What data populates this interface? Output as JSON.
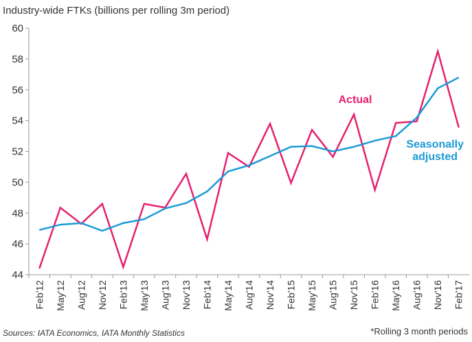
{
  "chart_data": {
    "type": "line",
    "title": "Industry-wide FTKs (billions per rolling 3m period)",
    "categories": [
      "Feb'12",
      "May'12",
      "Aug'12",
      "Nov'12",
      "Feb'13",
      "May'13",
      "Aug'13",
      "Nov'13",
      "Feb'14",
      "May'14",
      "Aug'14",
      "Nov'14",
      "Feb'15",
      "May'15",
      "Aug'15",
      "Nov'15",
      "Feb'16",
      "May'16",
      "Aug'16",
      "Nov'16",
      "Feb'17"
    ],
    "series": [
      {
        "name": "Actual",
        "color": "#e5206f",
        "values": [
          44.4,
          48.35,
          47.3,
          48.6,
          44.5,
          48.6,
          48.35,
          50.55,
          46.3,
          51.9,
          51.0,
          53.8,
          49.95,
          53.4,
          51.65,
          54.4,
          49.5,
          53.85,
          53.95,
          58.5,
          53.55
        ]
      },
      {
        "name": "Seasonally adjusted",
        "color": "#1b9ad6",
        "values": [
          46.9,
          47.25,
          47.35,
          46.85,
          47.35,
          47.6,
          48.3,
          48.65,
          49.4,
          50.7,
          51.1,
          51.7,
          52.3,
          52.35,
          52.0,
          52.3,
          52.7,
          53.0,
          54.2,
          56.1,
          56.8
        ]
      }
    ],
    "ylim": [
      44,
      60
    ],
    "yticks": [
      44,
      46,
      48,
      50,
      52,
      54,
      56,
      58,
      60
    ],
    "source": "Sources: IATA Economics, IATA Monthly Statistics",
    "note": "*Rolling 3 month periods"
  }
}
